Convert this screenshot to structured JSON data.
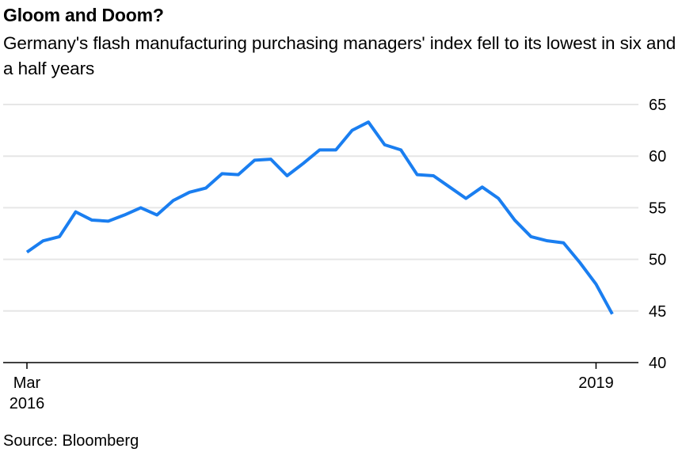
{
  "title": "Gloom and Doom?",
  "subtitle": "Germany's flash manufacturing purchasing managers' index fell to its lowest in six and a half years",
  "source": "Source: Bloomberg",
  "chart_data": {
    "type": "line",
    "title": "Gloom and Doom?",
    "subtitle": "Germany's flash manufacturing purchasing managers' index fell to its lowest in six and a half years",
    "xlabel": "",
    "ylabel": "",
    "x_tick_labels": [
      {
        "index": 0,
        "line1": "Mar",
        "line2": "2016"
      },
      {
        "index": 35,
        "line1": "2019",
        "line2": ""
      }
    ],
    "ylim": [
      40,
      65
    ],
    "y_ticks": [
      40,
      45,
      50,
      55,
      60,
      65
    ],
    "grid": true,
    "y_axis_side": "right",
    "series": [
      {
        "name": "Germany flash manufacturing PMI",
        "color": "#1a7ef0",
        "values": [
          50.7,
          51.8,
          52.2,
          54.6,
          53.8,
          53.7,
          54.3,
          55.0,
          54.3,
          55.7,
          56.5,
          56.9,
          58.3,
          58.2,
          59.6,
          59.7,
          58.1,
          59.3,
          60.6,
          60.6,
          62.5,
          63.3,
          61.1,
          60.6,
          58.2,
          58.1,
          57.0,
          55.9,
          57.0,
          55.9,
          53.8,
          52.2,
          51.8,
          51.6,
          49.7,
          47.6,
          44.7
        ]
      }
    ]
  }
}
